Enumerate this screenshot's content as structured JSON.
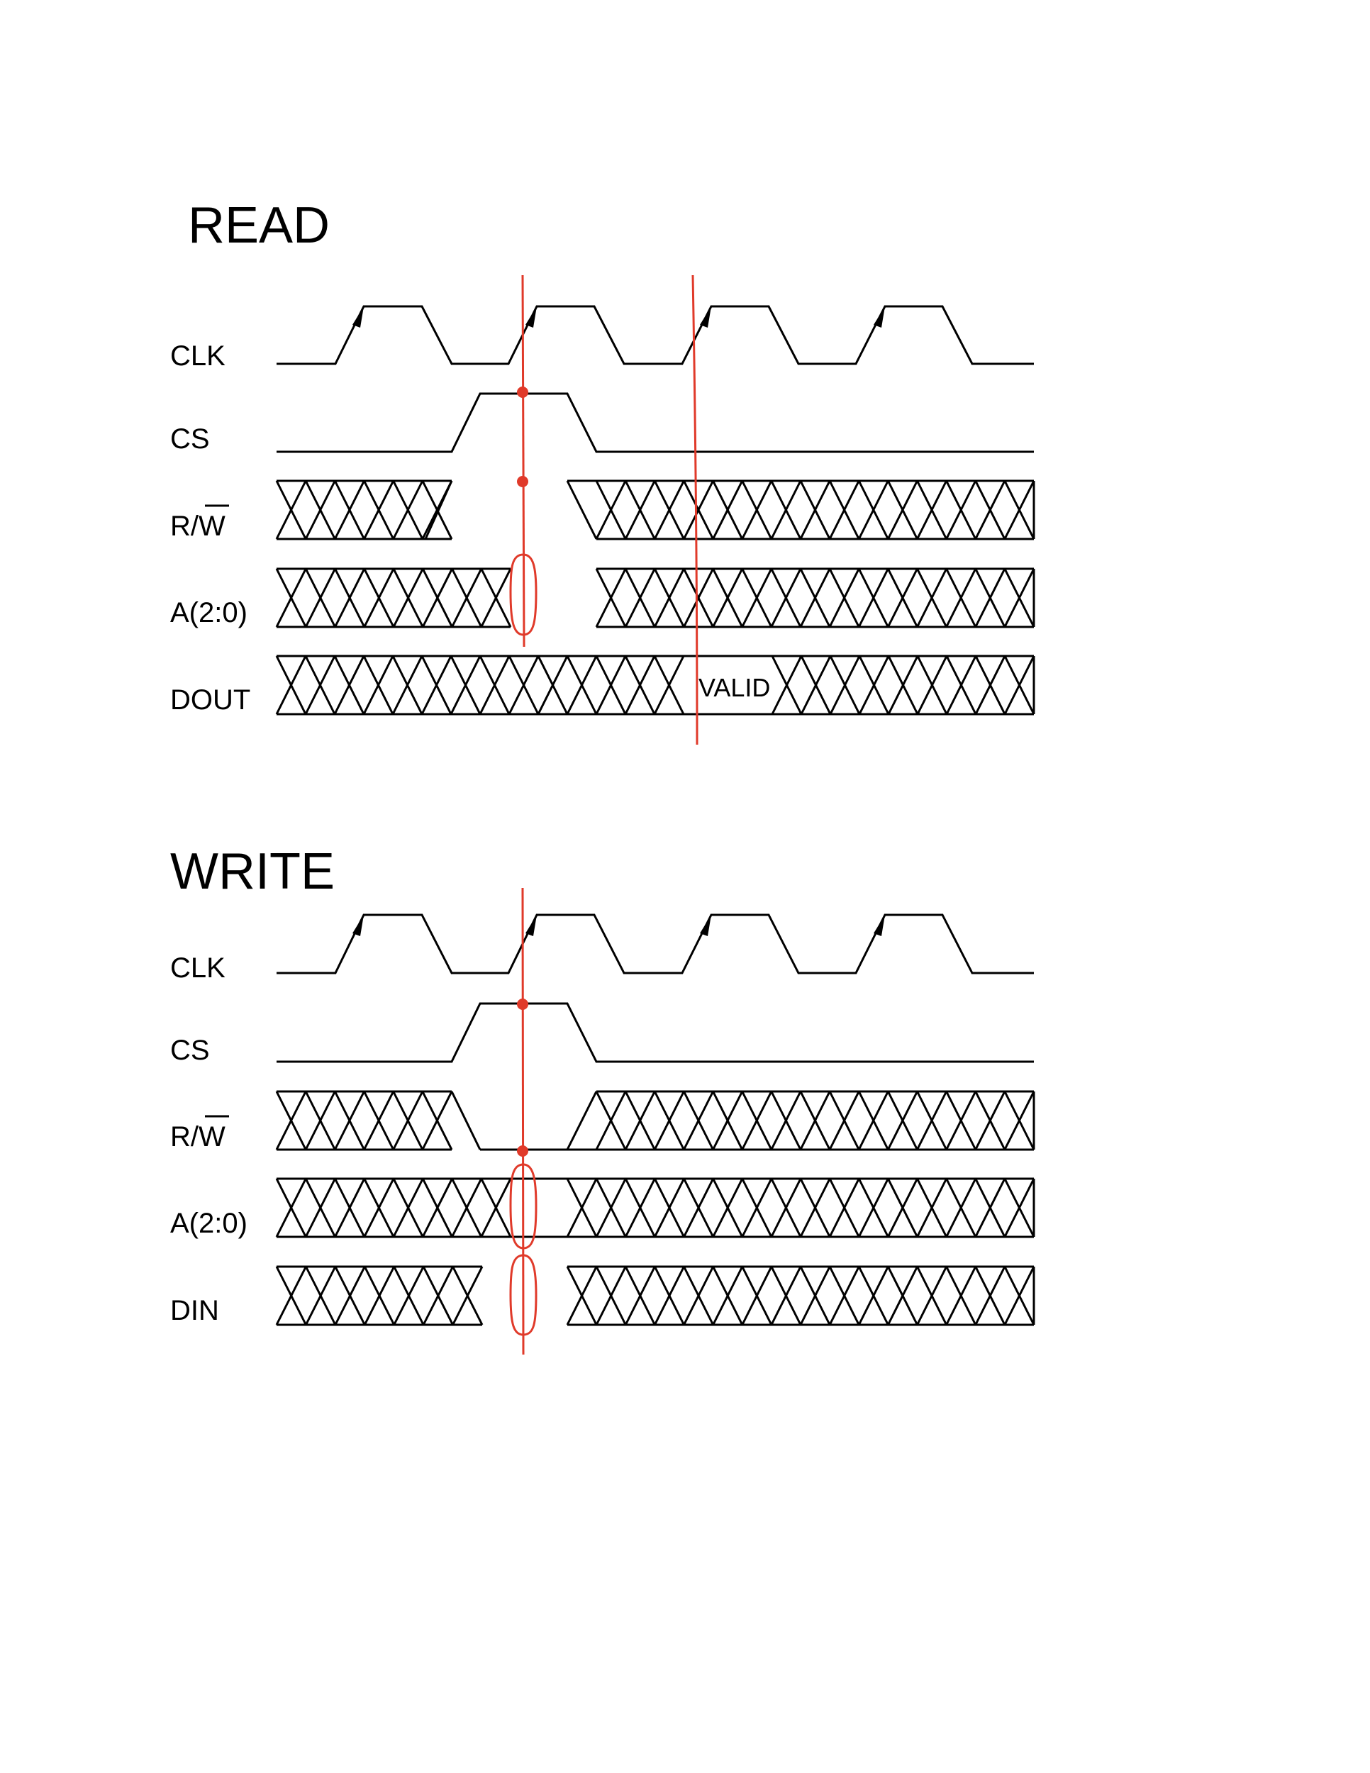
{
  "read": {
    "title": "READ",
    "signals": {
      "clk": "CLK",
      "cs": "CS",
      "rw": "R/W",
      "addr": "A(2:0)",
      "data": "DOUT"
    },
    "valid_label": "VALID"
  },
  "write": {
    "title": "WRITE",
    "signals": {
      "clk": "CLK",
      "cs": "CS",
      "rw": "R/W",
      "addr": "A(2:0)",
      "data": "DIN"
    }
  },
  "colors": {
    "waveform": "#000000",
    "annotation": "#e03a2a"
  }
}
